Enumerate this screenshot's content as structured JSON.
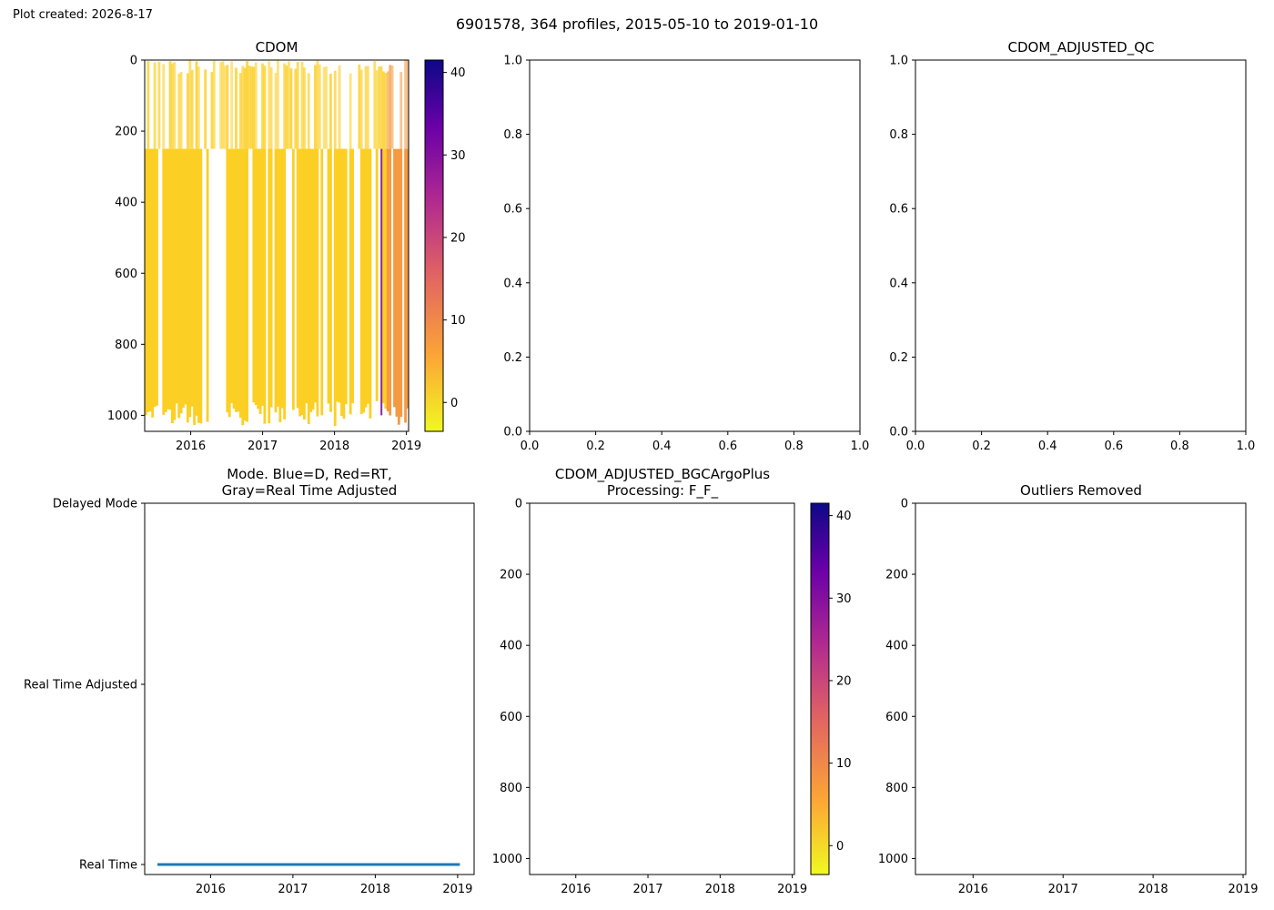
{
  "created": "Plot created: 2026-8-17",
  "suptitle": "6901578, 364 profiles, 2015-05-10 to 2019-01-10",
  "colors": {
    "cdom_yellow": "#fccf25",
    "cmap": [
      "#f0f921",
      "#fca636",
      "#e16462",
      "#b12a90",
      "#6a00a8",
      "#0d0887"
    ],
    "mode_line": "#1f77b4"
  },
  "chart_data": [
    {
      "type": "heatmap",
      "title": "CDOM",
      "x_ticks": [
        "2016",
        "2017",
        "2018",
        "2019"
      ],
      "y_ticks": [
        "0",
        "200",
        "400",
        "600",
        "800",
        "1000"
      ],
      "xlim": [
        2015.36,
        2019.03
      ],
      "ylim": [
        1045,
        0
      ],
      "colorbar": {
        "ticks": [
          "0",
          "10",
          "20",
          "30",
          "40"
        ],
        "range": [
          -3.5,
          41.5
        ]
      },
      "summary": {
        "bulk_value": 0.5,
        "late_value_2018_7_onward": 7
      }
    },
    {
      "type": "line",
      "title": "",
      "x_ticks": [
        "0.0",
        "0.2",
        "0.4",
        "0.6",
        "0.8",
        "1.0"
      ],
      "y_ticks": [
        "0.0",
        "0.2",
        "0.4",
        "0.6",
        "0.8",
        "1.0"
      ],
      "xlim": [
        0,
        1
      ],
      "ylim": [
        0,
        1
      ]
    },
    {
      "type": "line",
      "title": "CDOM_ADJUSTED_QC",
      "x_ticks": [
        "0.0",
        "0.2",
        "0.4",
        "0.6",
        "0.8",
        "1.0"
      ],
      "y_ticks": [
        "0.0",
        "0.2",
        "0.4",
        "0.6",
        "0.8",
        "1.0"
      ],
      "xlim": [
        0,
        1
      ],
      "ylim": [
        0,
        1
      ]
    },
    {
      "type": "scatter",
      "title": [
        "Mode. Blue=D, Red=RT,",
        "Gray=Real Time Adjusted"
      ],
      "x_ticks": [
        "2016",
        "2017",
        "2018",
        "2019"
      ],
      "y_ticks": [
        "Delayed Mode",
        "Real Time Adjusted",
        "Real Time"
      ],
      "xlim": [
        2015.2,
        2019.2
      ],
      "series": [
        {
          "x_range": [
            "2015-05-10",
            "2019-01-10"
          ],
          "y": "Real Time"
        }
      ]
    },
    {
      "type": "heatmap",
      "title": [
        "CDOM_ADJUSTED_BGCArgoPlus",
        "Processing: F_F_"
      ],
      "x_ticks": [
        "2016",
        "2017",
        "2018",
        "2019"
      ],
      "y_ticks": [
        "0",
        "200",
        "400",
        "600",
        "800",
        "1000"
      ],
      "xlim": [
        2015.36,
        2019.03
      ],
      "ylim": [
        1045,
        0
      ],
      "colorbar": {
        "ticks": [
          "0",
          "10",
          "20",
          "30",
          "40"
        ],
        "range": [
          -3.5,
          41.5
        ]
      }
    },
    {
      "type": "heatmap",
      "title": "Outliers Removed",
      "x_ticks": [
        "2016",
        "2017",
        "2018",
        "2019"
      ],
      "y_ticks": [
        "0",
        "200",
        "400",
        "600",
        "800",
        "1000"
      ],
      "xlim": [
        2015.36,
        2019.03
      ],
      "ylim": [
        1045,
        0
      ]
    }
  ]
}
